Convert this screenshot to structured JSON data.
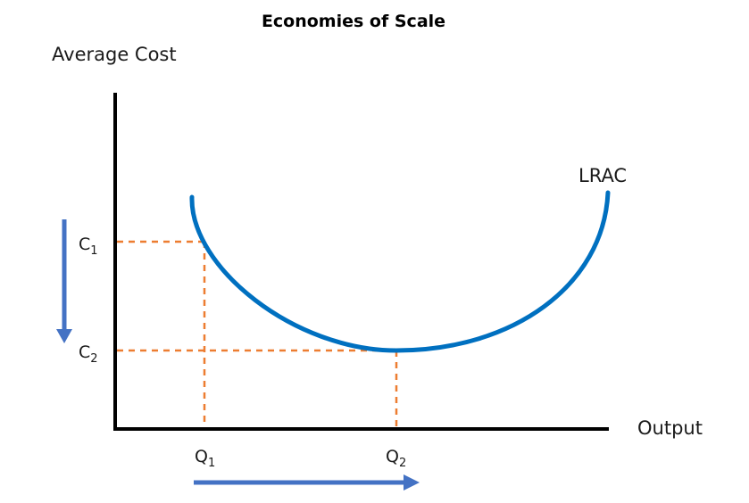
{
  "title": "Economies of Scale",
  "y_axis_label": "Average Cost",
  "x_axis_label": "Output",
  "curve_label": "LRAC",
  "cost_levels": [
    {
      "letter": "C",
      "sub": "1"
    },
    {
      "letter": "C",
      "sub": "2"
    }
  ],
  "output_levels": [
    {
      "letter": "Q",
      "sub": "1"
    },
    {
      "letter": "Q",
      "sub": "2"
    }
  ],
  "colors": {
    "axis": "#000000",
    "curve": "#0070c0",
    "guides": "#ed7d31",
    "arrows": "#4472c4",
    "text": "#1a1a1a"
  }
}
